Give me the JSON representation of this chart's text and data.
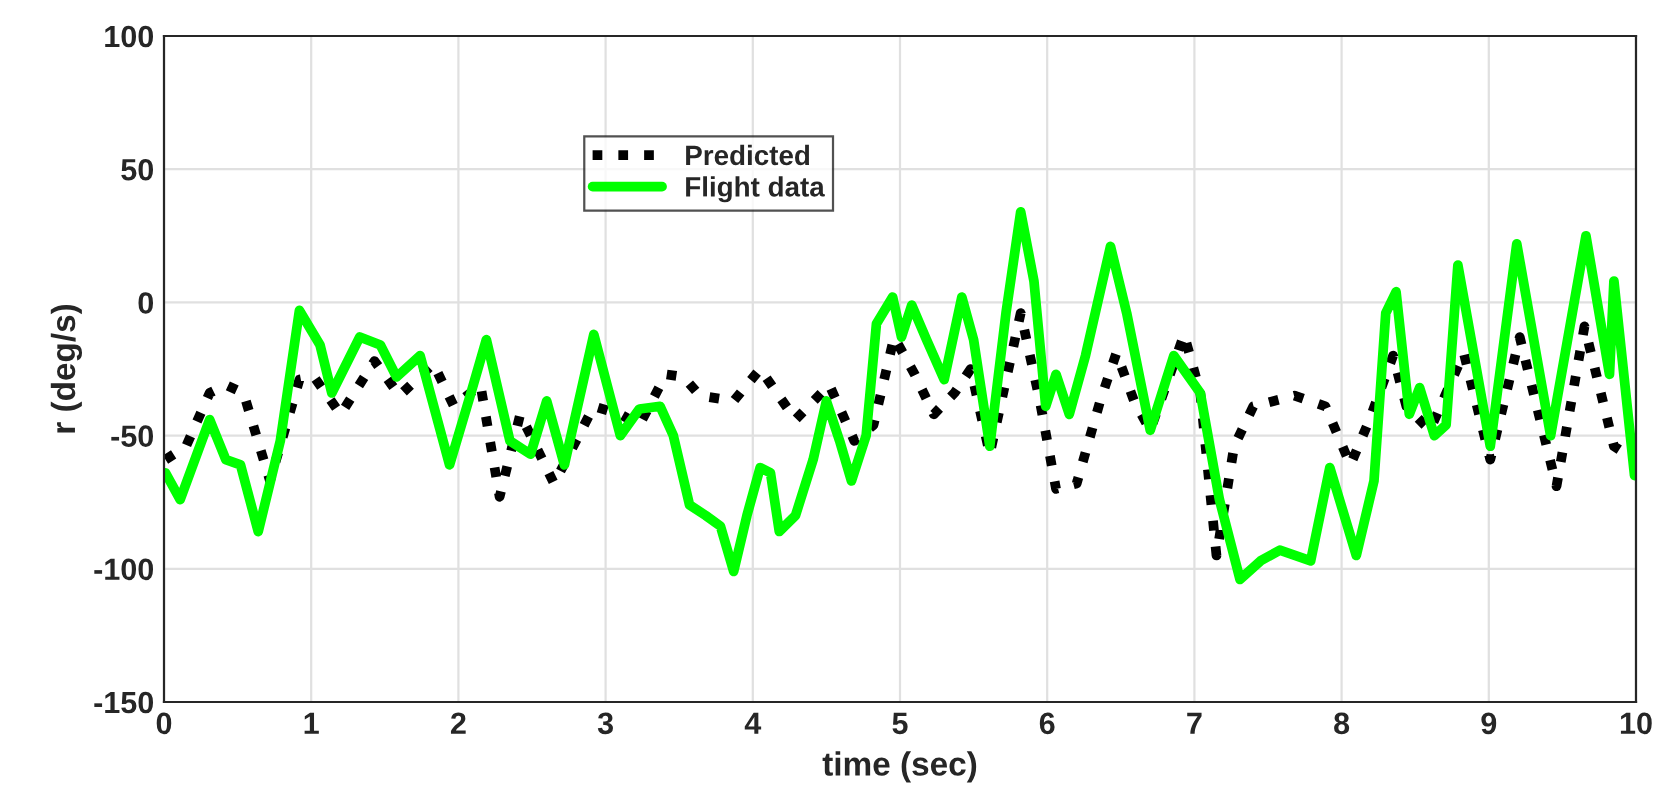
{
  "chart_data": {
    "type": "line",
    "xlabel": "time (sec)",
    "ylabel": "r (deg/s)",
    "xlim": [
      0,
      10
    ],
    "xticks": [
      0,
      1,
      2,
      3,
      4,
      5,
      6,
      7,
      8,
      9,
      10
    ],
    "ylim": [
      -150,
      100
    ],
    "yticks": [
      -150,
      -100,
      -50,
      0,
      50,
      100
    ],
    "grid": true,
    "legend": "top",
    "series": [
      {
        "name": "Predicted",
        "color": "#000000",
        "line_style": "dotted",
        "x": [
          0.01,
          0.15,
          0.31,
          0.42,
          0.54,
          0.72,
          0.92,
          1.02,
          1.2,
          1.43,
          1.6,
          1.83,
          1.97,
          2.15,
          2.28,
          2.42,
          2.65,
          2.92,
          3.1,
          3.23,
          3.41,
          3.53,
          3.64,
          3.87,
          4.05,
          4.29,
          4.52,
          4.69,
          4.82,
          4.96,
          5.1,
          5.23,
          5.37,
          5.48,
          5.61,
          5.82,
          5.95,
          6.06,
          6.2,
          6.36,
          6.47,
          6.59,
          6.7,
          6.93,
          7.04,
          7.15,
          7.27,
          7.4,
          7.68,
          7.89,
          8.06,
          8.19,
          8.35,
          8.44,
          8.6,
          8.83,
          9.01,
          9.21,
          9.46,
          9.65,
          9.85,
          9.99
        ],
        "values": [
          -59,
          -54,
          -34,
          -31,
          -34,
          -67,
          -29,
          -28,
          -42,
          -22,
          -35,
          -23,
          -39,
          -31,
          -73,
          -42,
          -68,
          -39,
          -42,
          -46,
          -27,
          -28,
          -35,
          -37,
          -25,
          -44,
          -31,
          -52,
          -46,
          -13,
          -27,
          -42,
          -34,
          -25,
          -57,
          -4,
          -37,
          -70,
          -68,
          -37,
          -19,
          -37,
          -48,
          -12,
          -34,
          -95,
          -54,
          -39,
          -35,
          -39,
          -61,
          -44,
          -20,
          -39,
          -48,
          -19,
          -59,
          -13,
          -69,
          -9,
          -54,
          -59
        ]
      },
      {
        "name": "Flight data",
        "color": "#00ff00",
        "line_style": "solid",
        "x": [
          0.01,
          0.11,
          0.31,
          0.42,
          0.52,
          0.64,
          0.79,
          0.92,
          1.06,
          1.14,
          1.33,
          1.47,
          1.58,
          1.74,
          1.94,
          2.08,
          2.19,
          2.35,
          2.49,
          2.6,
          2.72,
          2.92,
          3.1,
          3.23,
          3.37,
          3.46,
          3.57,
          3.68,
          3.78,
          3.87,
          3.96,
          4.05,
          4.12,
          4.18,
          4.29,
          4.41,
          4.5,
          4.59,
          4.67,
          4.77,
          4.84,
          4.95,
          5.01,
          5.08,
          5.18,
          5.3,
          5.42,
          5.5,
          5.61,
          5.72,
          5.82,
          5.91,
          5.99,
          6.06,
          6.15,
          6.26,
          6.43,
          6.54,
          6.7,
          6.86,
          7.04,
          7.17,
          7.31,
          7.45,
          7.58,
          7.79,
          7.92,
          8.1,
          8.22,
          8.3,
          8.37,
          8.46,
          8.53,
          8.63,
          8.71,
          8.79,
          9.01,
          9.19,
          9.42,
          9.66,
          9.82,
          9.85,
          9.99
        ],
        "values": [
          -64,
          -74,
          -44,
          -59,
          -61,
          -86,
          -52,
          -3,
          -16,
          -34,
          -13,
          -16,
          -28,
          -20,
          -61,
          -35,
          -14,
          -52,
          -57,
          -37,
          -61,
          -12,
          -50,
          -40,
          -39,
          -50,
          -76,
          -80,
          -84,
          -101,
          -80,
          -62,
          -64,
          -86,
          -80,
          -59,
          -37,
          -52,
          -67,
          -50,
          -8,
          2,
          -13,
          -1,
          -14,
          -29,
          2,
          -14,
          -54,
          -4,
          34,
          8,
          -39,
          -27,
          -42,
          -20,
          21,
          -4,
          -48,
          -20,
          -34,
          -74,
          -104,
          -97,
          -93,
          -97,
          -62,
          -95,
          -67,
          -4,
          4,
          -42,
          -32,
          -50,
          -46,
          14,
          -54,
          22,
          -50,
          25,
          -27,
          8,
          -65
        ]
      }
    ]
  }
}
